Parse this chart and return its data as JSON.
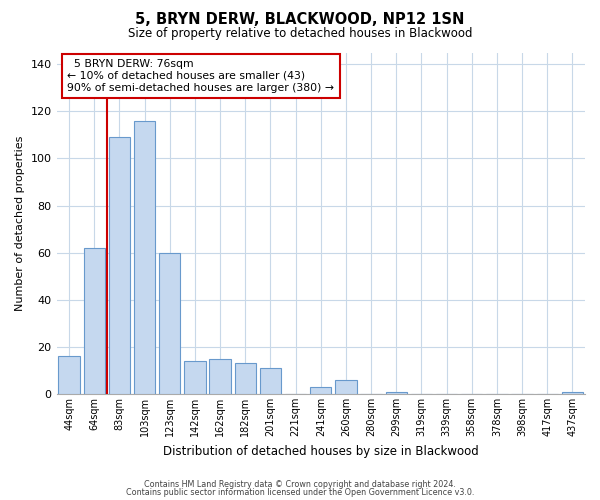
{
  "title": "5, BRYN DERW, BLACKWOOD, NP12 1SN",
  "subtitle": "Size of property relative to detached houses in Blackwood",
  "xlabel": "Distribution of detached houses by size in Blackwood",
  "ylabel": "Number of detached properties",
  "bar_labels": [
    "44sqm",
    "64sqm",
    "83sqm",
    "103sqm",
    "123sqm",
    "142sqm",
    "162sqm",
    "182sqm",
    "201sqm",
    "221sqm",
    "241sqm",
    "260sqm",
    "280sqm",
    "299sqm",
    "319sqm",
    "339sqm",
    "358sqm",
    "378sqm",
    "398sqm",
    "417sqm",
    "437sqm"
  ],
  "bar_values": [
    16,
    62,
    109,
    116,
    60,
    14,
    15,
    13,
    11,
    0,
    3,
    6,
    0,
    1,
    0,
    0,
    0,
    0,
    0,
    0,
    1
  ],
  "bar_color": "#c5d8ef",
  "bar_edge_color": "#6899cc",
  "vline_color": "#cc0000",
  "ylim": [
    0,
    145
  ],
  "yticks": [
    0,
    20,
    40,
    60,
    80,
    100,
    120,
    140
  ],
  "annotation_title": "5 BRYN DERW: 76sqm",
  "annotation_line1": "← 10% of detached houses are smaller (43)",
  "annotation_line2": "90% of semi-detached houses are larger (380) →",
  "annotation_box_color": "#ffffff",
  "annotation_box_edge": "#cc0000",
  "footer1": "Contains HM Land Registry data © Crown copyright and database right 2024.",
  "footer2": "Contains public sector information licensed under the Open Government Licence v3.0.",
  "background_color": "#ffffff",
  "grid_color": "#c8d8e8",
  "vline_bar_index": 2
}
